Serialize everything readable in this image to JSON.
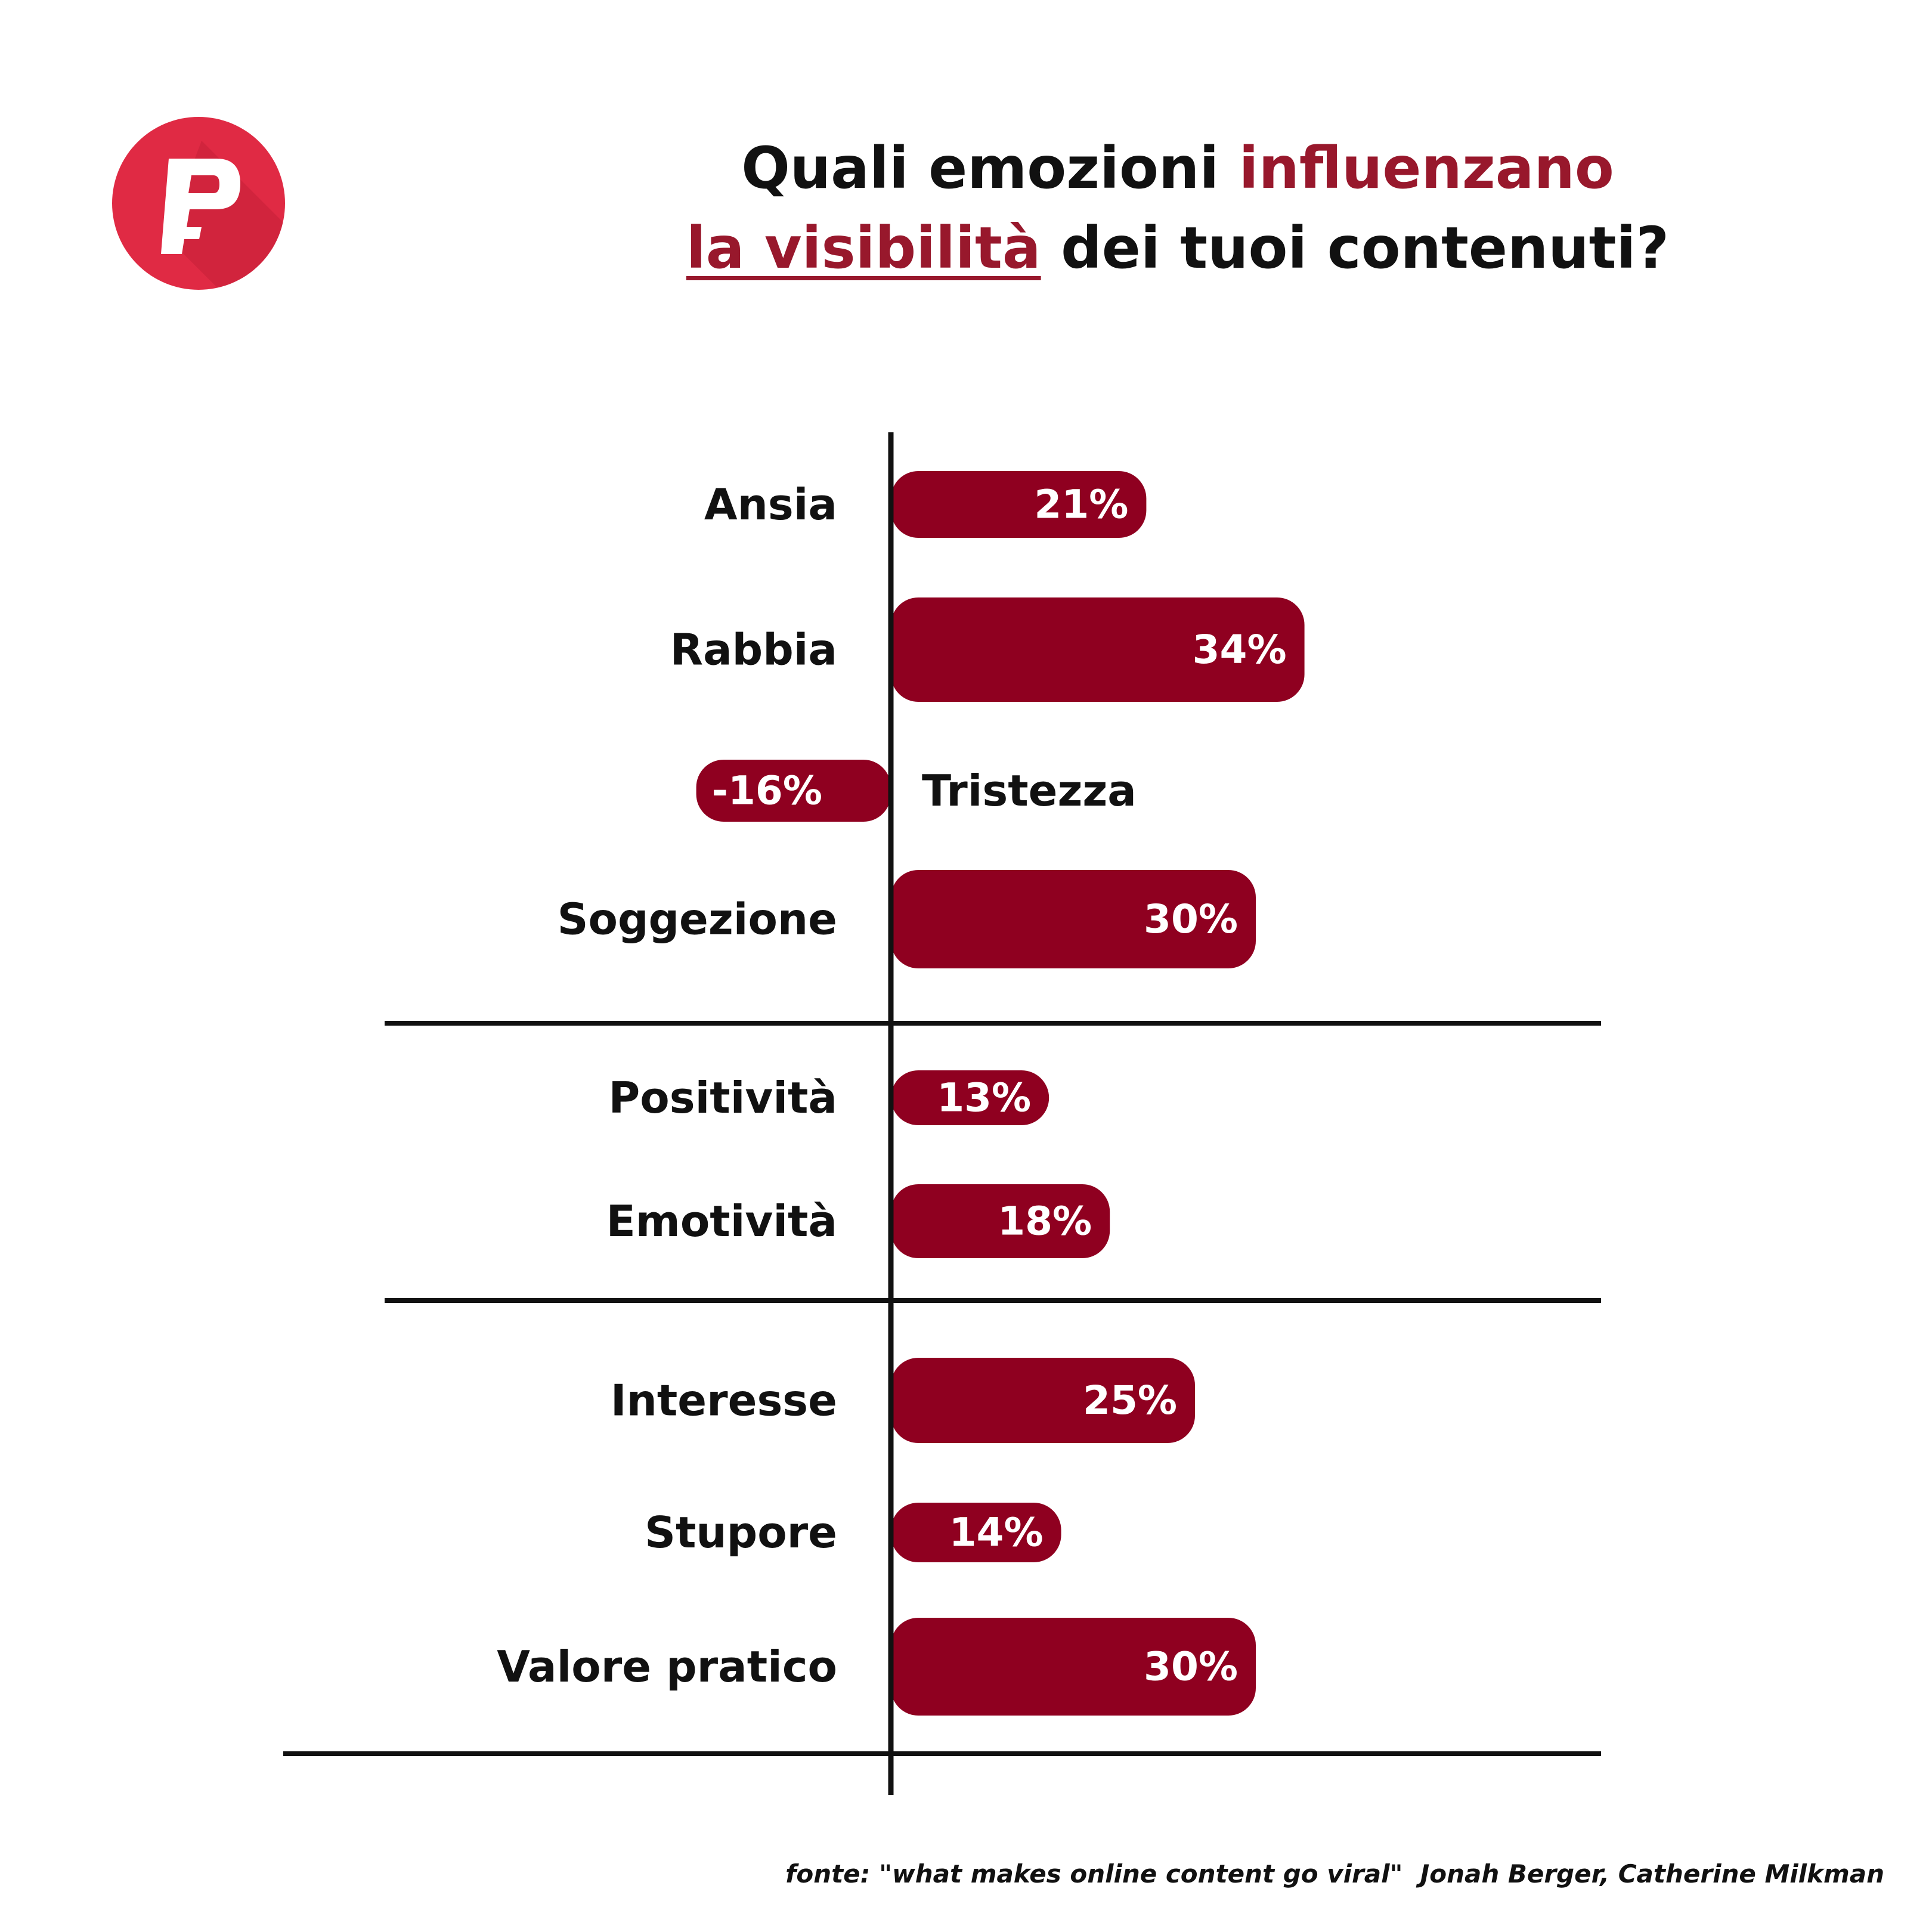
{
  "header": {
    "title_part1": "Quali emozioni ",
    "title_highlight1": "influenzano",
    "title_highlight2": "la visibilità",
    "title_part2": " dei tuoi contenuti?"
  },
  "logo": {
    "label": "P",
    "color": "#e02a44"
  },
  "colors": {
    "bar": "#8f0020",
    "text": "#111111",
    "bar_label": "#ffffff",
    "accent": "#98182c"
  },
  "chart_data": {
    "type": "bar",
    "orientation": "horizontal",
    "categories": [
      "Ansia",
      "Rabbia",
      "Tristezza",
      "Soggezione",
      "Positività",
      "Emotività",
      "Interesse",
      "Stupore",
      "Valore pratico"
    ],
    "values": [
      21,
      34,
      -16,
      30,
      13,
      18,
      25,
      14,
      30
    ],
    "value_labels": [
      "21%",
      "34%",
      "-16%",
      "30%",
      "13%",
      "18%",
      "25%",
      "14%",
      "30%"
    ],
    "unit": "%",
    "groups": [
      [
        "Ansia",
        "Rabbia",
        "Tristezza",
        "Soggezione"
      ],
      [
        "Positività",
        "Emotività"
      ],
      [
        "Interesse",
        "Stupore",
        "Valore pratico"
      ]
    ],
    "xlim": [
      -18,
      34
    ],
    "title": "",
    "xlabel": "",
    "ylabel": "",
    "grid": false,
    "legend": "none"
  },
  "footer": {
    "source": "fonte: \"what makes online content go viral\"  Jonah Berger, Catherine Milkman"
  }
}
